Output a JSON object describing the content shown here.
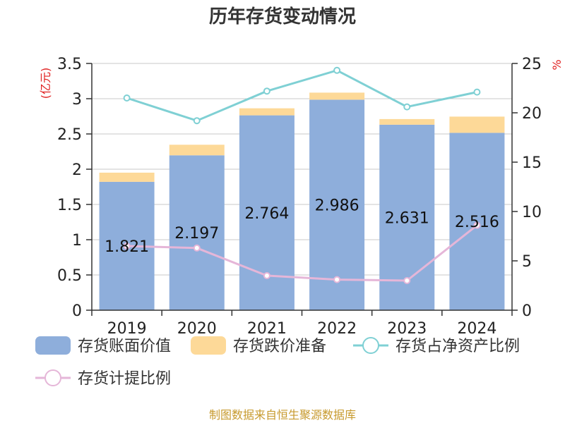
{
  "chart_data": {
    "type": "bar",
    "title": "历年存货变动情况",
    "left_unit": "(亿元)",
    "right_unit": "%",
    "categories": [
      "2019",
      "2020",
      "2021",
      "2022",
      "2023",
      "2024"
    ],
    "ylim_left": [
      0,
      3.5
    ],
    "yticks_left": [
      "0",
      "0.5",
      "1",
      "1.5",
      "2",
      "2.5",
      "3",
      "3.5"
    ],
    "ylim_right": [
      0,
      25
    ],
    "yticks_right": [
      "0",
      "5",
      "10",
      "15",
      "20",
      "25"
    ],
    "grid": true,
    "stacked": true,
    "series": [
      {
        "name": "存货账面价值",
        "kind": "bar",
        "axis": "left",
        "color": "#8eaedb",
        "values": [
          1.821,
          2.197,
          2.764,
          2.986,
          2.631,
          2.516
        ],
        "labels": [
          "1.821",
          "2.197",
          "2.764",
          "2.986",
          "2.631",
          "2.516"
        ]
      },
      {
        "name": "存货跌价准备",
        "kind": "bar",
        "axis": "left",
        "color": "#fdd998",
        "values": [
          0.13,
          0.15,
          0.1,
          0.1,
          0.08,
          0.23
        ]
      },
      {
        "name": "存货占净资产比例",
        "kind": "line",
        "axis": "right",
        "color": "#7fd0d4",
        "values": [
          21.5,
          19.2,
          22.2,
          24.3,
          20.6,
          22.1
        ]
      },
      {
        "name": "存货计提比例",
        "kind": "line",
        "axis": "right",
        "color": "#e5b6d8",
        "values": [
          6.5,
          6.3,
          3.5,
          3.1,
          3.0,
          8.6
        ]
      }
    ],
    "legend_position": "bottom"
  },
  "source": "制图数据来自恒生聚源数据库"
}
